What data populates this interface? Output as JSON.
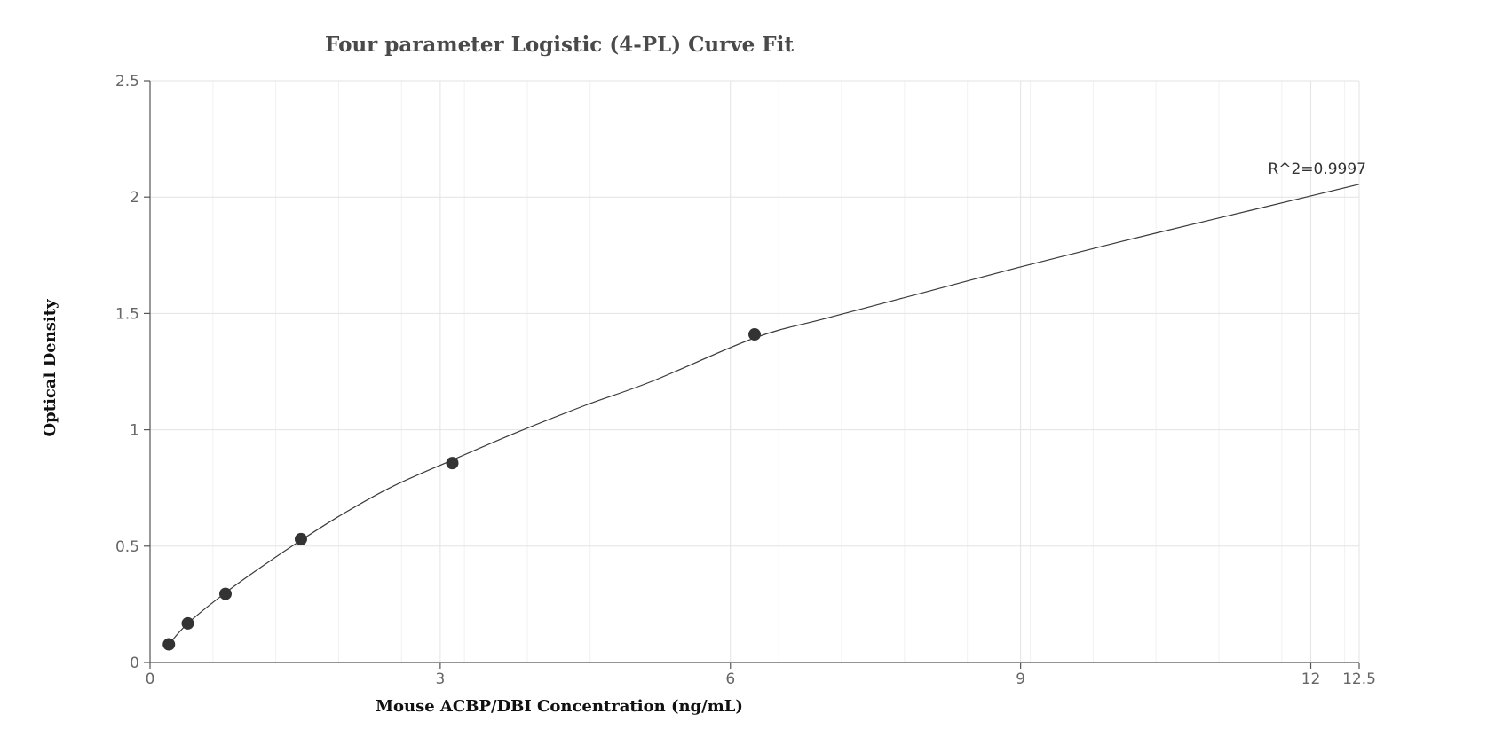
{
  "chart_data": {
    "type": "scatter",
    "title": "Four parameter Logistic (4-PL) Curve Fit",
    "xlabel": "Mouse ACBP/DBI Concentration (ng/mL)",
    "ylabel": "Optical Density",
    "xlim": [
      0,
      12.5
    ],
    "ylim": [
      0,
      2.5
    ],
    "x_ticks": [
      0,
      3,
      6,
      9,
      12,
      12.5
    ],
    "x_tick_labels": [
      "0",
      "3",
      "6",
      "9",
      "12",
      "12.5"
    ],
    "y_ticks": [
      0,
      0.5,
      1,
      1.5,
      2,
      2.5
    ],
    "y_tick_labels": [
      "0",
      "0.5",
      "1",
      "1.5",
      "2",
      "2.5"
    ],
    "grid": true,
    "series": [
      {
        "type": "scatter",
        "x": [
          0.195,
          0.39,
          0.78,
          1.56,
          3.125,
          6.25
        ],
        "y": [
          0.078,
          0.168,
          0.295,
          0.53,
          0.857,
          1.41
        ],
        "color": "#333333"
      },
      {
        "type": "line",
        "x": [
          0.195,
          0.39,
          0.78,
          1.2,
          1.56,
          2.0,
          2.5,
          3.125,
          3.8,
          4.5,
          5.2,
          6.25,
          7.0,
          8.0,
          9.0,
          10.0,
          11.0,
          12.0,
          12.5
        ],
        "y": [
          0.078,
          0.168,
          0.3,
          0.425,
          0.525,
          0.64,
          0.755,
          0.87,
          0.99,
          1.105,
          1.21,
          1.395,
          1.48,
          1.59,
          1.7,
          1.805,
          1.905,
          2.005,
          2.055
        ],
        "color": "#3a3a3a"
      }
    ],
    "annotations": [
      {
        "text": "R^2=0.9997",
        "x": 12.5,
        "y": 2.055
      }
    ]
  }
}
